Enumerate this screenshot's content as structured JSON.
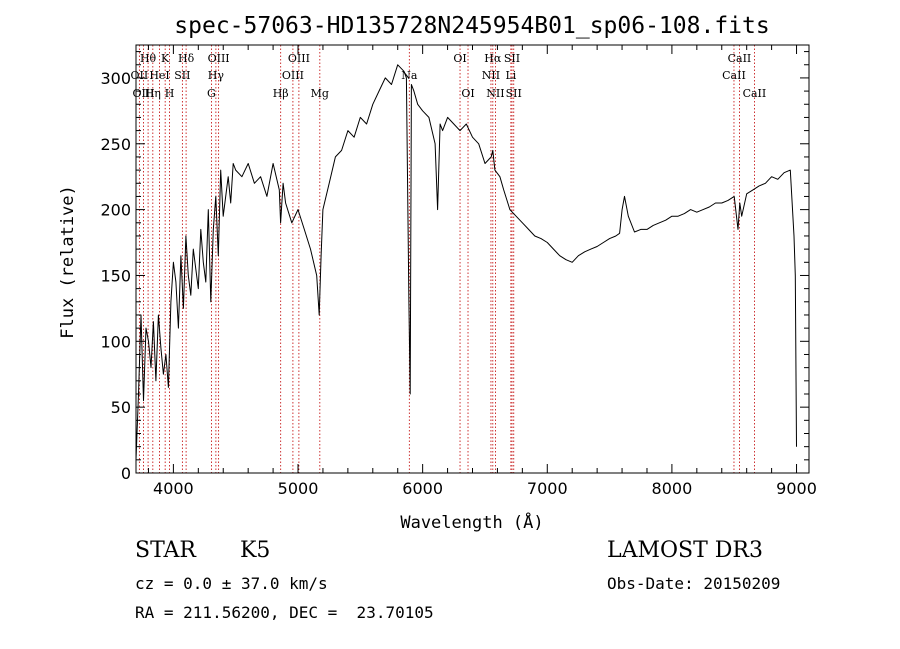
{
  "chart_data": {
    "type": "line",
    "title": "spec-57063-HD135728N245954B01_sp06-108.fits",
    "xlabel": "Wavelength (Å)",
    "ylabel": "Flux (relative)",
    "xlim": [
      3700,
      9100
    ],
    "ylim": [
      0,
      325
    ],
    "xticks": [
      4000,
      5000,
      6000,
      7000,
      8000,
      9000
    ],
    "yticks": [
      0,
      50,
      100,
      150,
      200,
      250,
      300
    ],
    "xtick_labels": [
      "4000",
      "5000",
      "6000",
      "7000",
      "8000",
      "9000"
    ],
    "ytick_labels": [
      "0",
      "50",
      "100",
      "150",
      "200",
      "250",
      "300"
    ],
    "series": [
      {
        "name": "flux",
        "x": [
          3700,
          3720,
          3740,
          3760,
          3780,
          3800,
          3820,
          3840,
          3860,
          3880,
          3900,
          3920,
          3940,
          3960,
          3980,
          4000,
          4020,
          4040,
          4060,
          4080,
          4100,
          4120,
          4140,
          4160,
          4180,
          4200,
          4220,
          4240,
          4260,
          4280,
          4300,
          4320,
          4340,
          4360,
          4380,
          4400,
          4420,
          4440,
          4460,
          4480,
          4500,
          4550,
          4600,
          4650,
          4700,
          4750,
          4800,
          4850,
          4860,
          4880,
          4900,
          4950,
          5000,
          5050,
          5100,
          5150,
          5170,
          5185,
          5200,
          5250,
          5300,
          5350,
          5400,
          5450,
          5500,
          5550,
          5600,
          5650,
          5700,
          5750,
          5800,
          5850,
          5870,
          5890,
          5900,
          5910,
          5930,
          5960,
          6000,
          6050,
          6100,
          6120,
          6140,
          6160,
          6200,
          6250,
          6300,
          6350,
          6400,
          6450,
          6500,
          6550,
          6563,
          6580,
          6620,
          6650,
          6700,
          6750,
          6800,
          6850,
          6900,
          6950,
          7000,
          7050,
          7100,
          7150,
          7200,
          7250,
          7300,
          7350,
          7400,
          7450,
          7500,
          7550,
          7580,
          7600,
          7620,
          7650,
          7700,
          7750,
          7800,
          7850,
          7900,
          7950,
          8000,
          8050,
          8100,
          8150,
          8200,
          8250,
          8300,
          8350,
          8400,
          8450,
          8500,
          8530,
          8545,
          8560,
          8600,
          8650,
          8700,
          8750,
          8800,
          8850,
          8900,
          8950,
          8980,
          8990,
          9000
        ],
        "y": [
          10,
          60,
          120,
          55,
          110,
          100,
          80,
          115,
          70,
          120,
          95,
          75,
          90,
          65,
          130,
          160,
          145,
          110,
          165,
          125,
          180,
          150,
          135,
          170,
          155,
          140,
          185,
          160,
          145,
          200,
          130,
          185,
          210,
          165,
          230,
          195,
          210,
          225,
          205,
          235,
          230,
          225,
          235,
          220,
          225,
          210,
          235,
          215,
          190,
          220,
          205,
          190,
          200,
          185,
          170,
          150,
          120,
          165,
          200,
          220,
          240,
          245,
          260,
          255,
          270,
          265,
          280,
          290,
          300,
          295,
          310,
          305,
          300,
          130,
          60,
          295,
          290,
          280,
          275,
          270,
          250,
          200,
          265,
          260,
          270,
          265,
          260,
          265,
          255,
          250,
          235,
          240,
          245,
          230,
          225,
          215,
          200,
          195,
          190,
          185,
          180,
          178,
          175,
          170,
          165,
          162,
          160,
          165,
          168,
          170,
          172,
          175,
          178,
          180,
          182,
          200,
          210,
          195,
          183,
          185,
          185,
          188,
          190,
          192,
          195,
          195,
          197,
          200,
          198,
          200,
          202,
          205,
          205,
          207,
          210,
          185,
          205,
          195,
          212,
          215,
          218,
          220,
          225,
          223,
          228,
          230,
          180,
          150,
          20
        ]
      }
    ],
    "line_markers": [
      {
        "label": "Hθ",
        "x": 3797,
        "row": 1
      },
      {
        "label": "OII",
        "x": 3727,
        "row": 2
      },
      {
        "label": "OIII",
        "x": 3760,
        "row": 3
      },
      {
        "label": "K",
        "x": 3934,
        "row": 1
      },
      {
        "label": "HeI",
        "x": 3889,
        "row": 2
      },
      {
        "label": "Hη",
        "x": 3835,
        "row": 3
      },
      {
        "label": "Hδ",
        "x": 4102,
        "row": 1
      },
      {
        "label": "SII",
        "x": 4072,
        "row": 2
      },
      {
        "label": "H",
        "x": 3969,
        "row": 3
      },
      {
        "label": "OIII",
        "x": 4363,
        "row": 1
      },
      {
        "label": "Hγ",
        "x": 4341,
        "row": 2
      },
      {
        "label": "G",
        "x": 4305,
        "row": 3
      },
      {
        "label": "Hβ",
        "x": 4861,
        "row": 3
      },
      {
        "label": "OIII",
        "x": 5007,
        "row": 1
      },
      {
        "label": "OIII",
        "x": 4959,
        "row": 2
      },
      {
        "label": "Mg",
        "x": 5175,
        "row": 3
      },
      {
        "label": "Na",
        "x": 5893,
        "row": 2
      },
      {
        "label": "OI",
        "x": 6300,
        "row": 1
      },
      {
        "label": "OI",
        "x": 6364,
        "row": 3
      },
      {
        "label": "Hα",
        "x": 6563,
        "row": 1
      },
      {
        "label": "NII",
        "x": 6548,
        "row": 2
      },
      {
        "label": "NII",
        "x": 6584,
        "row": 3
      },
      {
        "label": "SII",
        "x": 6717,
        "row": 1
      },
      {
        "label": "Li",
        "x": 6708,
        "row": 2
      },
      {
        "label": "SII",
        "x": 6731,
        "row": 3
      },
      {
        "label": "CaII",
        "x": 8542,
        "row": 1
      },
      {
        "label": "CaII",
        "x": 8498,
        "row": 2
      },
      {
        "label": "CaII",
        "x": 8662,
        "row": 3
      }
    ]
  },
  "info": {
    "class": "STAR",
    "subclass": "K5",
    "survey": "LAMOST DR3",
    "cz": "cz = 0.0 ± 37.0 km/s",
    "obs_date": "Obs-Date: 20150209",
    "coords": "RA = 211.56200, DEC =  23.70105"
  },
  "colors": {
    "line": "#000000",
    "markers": "#c00000",
    "background": "#ffffff"
  }
}
